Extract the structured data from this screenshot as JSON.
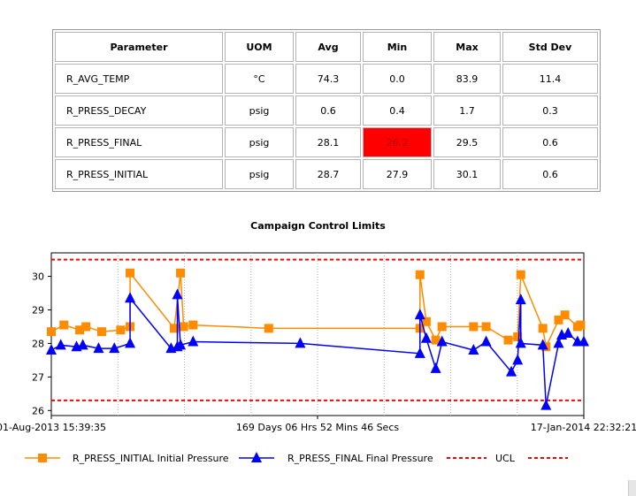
{
  "colors": {
    "initial": "#ff8c00",
    "final": "#0000ff",
    "limit": "#ff0000",
    "alert": "#ff0000"
  },
  "table": {
    "headers": [
      "Parameter",
      "UOM",
      "Avg",
      "Min",
      "Max",
      "Std Dev"
    ],
    "rows": [
      {
        "param": "R_AVG_TEMP",
        "uom": "°C",
        "avg": "74.3",
        "min": "0.0",
        "max": "83.9",
        "std": "11.4"
      },
      {
        "param": "R_PRESS_DECAY",
        "uom": "psig",
        "avg": "0.6",
        "min": "0.4",
        "max": "1.7",
        "std": "0.3"
      },
      {
        "param": "R_PRESS_FINAL",
        "uom": "psig",
        "avg": "28.1",
        "min": "26.2",
        "max": "29.5",
        "std": "0.6",
        "min_alert": true
      },
      {
        "param": "R_PRESS_INITIAL",
        "uom": "psig",
        "avg": "28.7",
        "min": "27.9",
        "max": "30.1",
        "std": "0.6"
      }
    ]
  },
  "chart_data": {
    "type": "line",
    "title": "Campaign Control Limits",
    "x_axis": {
      "start_label": "01-Aug-2013 15:39:35",
      "middle_label": "169 Days 06 Hrs 52 Mins 46 Secs",
      "end_label": "17-Jan-2014 22:32:21",
      "start_date": "2013-08-01",
      "end_date": "2014-01-17"
    },
    "y_axis": {
      "ylim": [
        25.85,
        30.7
      ],
      "ticks": [
        26,
        27,
        28,
        29,
        30
      ]
    },
    "limits": {
      "ucl": 30.5,
      "lcl": 26.3
    },
    "series": [
      {
        "name": "R_PRESS_INITIAL Initial Pressure",
        "key": "initial",
        "marker": "square",
        "points": [
          [
            "2013-08-01",
            28.35
          ],
          [
            "2013-08-05",
            28.55
          ],
          [
            "2013-08-10",
            28.4
          ],
          [
            "2013-08-12",
            28.5
          ],
          [
            "2013-08-17",
            28.35
          ],
          [
            "2013-08-23",
            28.4
          ],
          [
            "2013-08-26",
            28.5
          ],
          [
            "2013-08-26",
            30.1
          ],
          [
            "2013-09-09",
            28.45
          ],
          [
            "2013-09-11",
            30.1
          ],
          [
            "2013-09-12",
            28.5
          ],
          [
            "2013-09-15",
            28.55
          ],
          [
            "2013-10-09",
            28.45
          ],
          [
            "2013-11-26",
            28.45
          ],
          [
            "2013-11-26",
            30.05
          ],
          [
            "2013-11-28",
            28.65
          ],
          [
            "2013-12-01",
            28.1
          ],
          [
            "2013-12-03",
            28.5
          ],
          [
            "2013-12-13",
            28.5
          ],
          [
            "2013-12-17",
            28.5
          ],
          [
            "2013-12-24",
            28.1
          ],
          [
            "2013-12-27",
            28.2
          ],
          [
            "2013-12-28",
            30.05
          ],
          [
            "2014-01-04",
            28.45
          ],
          [
            "2014-01-05",
            27.9
          ],
          [
            "2014-01-09",
            28.7
          ],
          [
            "2014-01-11",
            28.85
          ],
          [
            "2014-01-15",
            28.5
          ],
          [
            "2014-01-16",
            28.55
          ]
        ]
      },
      {
        "name": "R_PRESS_FINAL Final Pressure",
        "key": "final",
        "marker": "triangle",
        "points": [
          [
            "2013-08-01",
            27.8
          ],
          [
            "2013-08-04",
            27.95
          ],
          [
            "2013-08-09",
            27.9
          ],
          [
            "2013-08-11",
            27.95
          ],
          [
            "2013-08-16",
            27.85
          ],
          [
            "2013-08-21",
            27.85
          ],
          [
            "2013-08-26",
            28.0
          ],
          [
            "2013-08-26",
            29.35
          ],
          [
            "2013-09-08",
            27.85
          ],
          [
            "2013-09-10",
            27.9
          ],
          [
            "2013-09-10",
            29.45
          ],
          [
            "2013-09-11",
            27.95
          ],
          [
            "2013-09-15",
            28.05
          ],
          [
            "2013-10-19",
            28.0
          ],
          [
            "2013-11-26",
            27.7
          ],
          [
            "2013-11-26",
            28.85
          ],
          [
            "2013-11-28",
            28.15
          ],
          [
            "2013-12-01",
            27.25
          ],
          [
            "2013-12-03",
            28.05
          ],
          [
            "2013-12-13",
            27.8
          ],
          [
            "2013-12-17",
            28.05
          ],
          [
            "2013-12-25",
            27.15
          ],
          [
            "2013-12-27",
            27.5
          ],
          [
            "2013-12-28",
            29.3
          ],
          [
            "2013-12-28",
            28.0
          ],
          [
            "2014-01-04",
            27.95
          ],
          [
            "2014-01-05",
            26.15
          ],
          [
            "2014-01-09",
            28.0
          ],
          [
            "2014-01-10",
            28.25
          ],
          [
            "2014-01-12",
            28.3
          ],
          [
            "2014-01-15",
            28.05
          ],
          [
            "2014-01-17",
            28.05
          ]
        ]
      }
    ],
    "legend": [
      {
        "label": "R_PRESS_INITIAL Initial Pressure",
        "key": "initial",
        "style": "square"
      },
      {
        "label": "R_PRESS_FINAL Final Pressure",
        "key": "final",
        "style": "triangle"
      },
      {
        "label": "UCL",
        "key": "limit",
        "style": "dashed"
      },
      {
        "label": "",
        "key": "limit",
        "style": "dashed"
      }
    ],
    "grid": "vertical dotted",
    "legend_position": "bottom"
  }
}
